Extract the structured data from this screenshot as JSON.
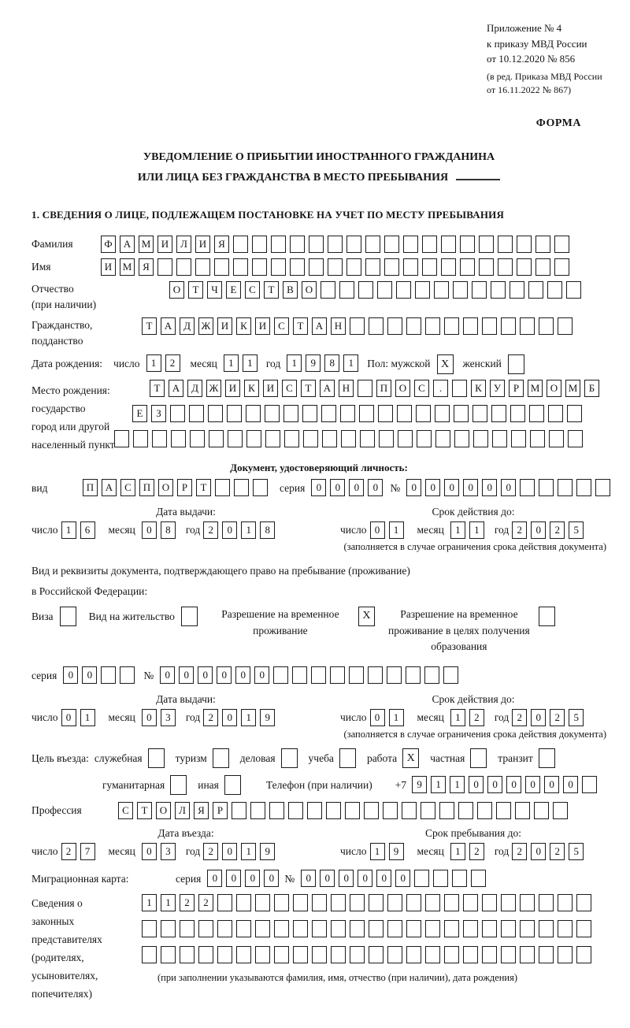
{
  "appendix": {
    "line1": "Приложение № 4",
    "line2": "к приказу МВД России",
    "line3": "от 10.12.2020 № 856",
    "line4": "(в ред. Приказа МВД России",
    "line5": "от 16.11.2022 № 867)"
  },
  "form_label": "ФОРМА",
  "title": {
    "line1": "УВЕДОМЛЕНИЕ О ПРИБЫТИИ ИНОСТРАННОГО ГРАЖДАНИНА",
    "line2": "ИЛИ ЛИЦА БЕЗ ГРАЖДАНСТВА В МЕСТО ПРЕБЫВАНИЯ"
  },
  "section_heading": "1. СВЕДЕНИЯ О ЛИЦЕ, ПОДЛЕЖАЩЕМ ПОСТАНОВКЕ НА УЧЕТ ПО МЕСТУ ПРЕБЫВАНИЯ",
  "date_part_labels": {
    "day": "число",
    "month": "месяц",
    "year": "год"
  },
  "surname": {
    "label": "Фамилия",
    "value": "ФАМИЛИЯ",
    "size": 25
  },
  "given_name": {
    "label": "Имя",
    "value": "ИМЯ",
    "size": 25
  },
  "patronymic": {
    "label1": "Отчество",
    "label2": "(при наличии)",
    "value": "ОТЧЕСТВО",
    "size": 22
  },
  "citizenship": {
    "label1": "Гражданство,",
    "label2": "подданство",
    "value": "ТАДЖИКИСТАН",
    "size": 23
  },
  "birth_date": {
    "label": "Дата рождения:",
    "day": {
      "value": "12",
      "size": 2
    },
    "month": {
      "value": "11",
      "size": 2
    },
    "year": {
      "value": "1981",
      "size": 4
    }
  },
  "gender": {
    "label": "Пол: мужской",
    "male_mark": "X",
    "female_label": "женский",
    "female_mark": ""
  },
  "birth_place": {
    "label1": "Место рождения:",
    "label2": "государство",
    "label3": "город или другой",
    "label4": "населенный пункт",
    "row1": {
      "value": "ТАДЖИКИСТАН ПОС. КУРМОМБ",
      "size": 24
    },
    "row2": {
      "value": "ЕЗ",
      "size": 24
    },
    "row3": {
      "value": "",
      "size": 25
    }
  },
  "identity_doc": {
    "heading": "Документ, удостоверяющий личность:",
    "kind_label": "вид",
    "kind": {
      "value": "ПАСПОРТ",
      "size": 10
    },
    "series_label": "серия",
    "series": {
      "value": "0000",
      "size": 4
    },
    "number_label": "№",
    "number": {
      "value": "000000",
      "size": 11
    },
    "issue_label": "Дата выдачи:",
    "issue": {
      "day": {
        "value": "16",
        "size": 2
      },
      "month": {
        "value": "08",
        "size": 2
      },
      "year": {
        "value": "2018",
        "size": 4
      }
    },
    "valid_label": "Срок действия до:",
    "valid": {
      "day": {
        "value": "01",
        "size": 2
      },
      "month": {
        "value": "11",
        "size": 2
      },
      "year": {
        "value": "2025",
        "size": 4
      }
    },
    "valid_note": "(заполняется в случае ограничения срока действия документа)"
  },
  "residence_doc": {
    "intro1": "Вид и реквизиты документа, подтверждающего право на пребывание (проживание)",
    "intro2": "в Российской Федерации:",
    "visa_label": "Виза",
    "visa_mark": "",
    "residence_permit_label": "Вид на жительство",
    "residence_permit_mark": "",
    "temp_residence_label": "Разрешение на временное проживание",
    "temp_residence_mark": "X",
    "temp_residence_edu_label": "Разрешение на временное проживание в целях получения образования",
    "temp_residence_edu_mark": "",
    "series_label": "серия",
    "series": {
      "value": "00",
      "size": 4
    },
    "number_label": "№",
    "number": {
      "value": "000000",
      "size": 16
    },
    "issue_label": "Дата выдачи:",
    "issue": {
      "day": {
        "value": "01",
        "size": 2
      },
      "month": {
        "value": "03",
        "size": 2
      },
      "year": {
        "value": "2019",
        "size": 4
      }
    },
    "valid_label": "Срок действия до:",
    "valid": {
      "day": {
        "value": "01",
        "size": 2
      },
      "month": {
        "value": "12",
        "size": 2
      },
      "year": {
        "value": "2025",
        "size": 4
      }
    },
    "valid_note": "(заполняется в случае ограничения срока действия документа)"
  },
  "purpose": {
    "label": "Цель въезда:",
    "items": [
      {
        "label": "служебная",
        "mark": ""
      },
      {
        "label": "туризм",
        "mark": ""
      },
      {
        "label": "деловая",
        "mark": ""
      },
      {
        "label": "учеба",
        "mark": ""
      },
      {
        "label": "работа",
        "mark": "X"
      },
      {
        "label": "частная",
        "mark": ""
      },
      {
        "label": "транзит",
        "mark": ""
      },
      {
        "label": "гуманитарная",
        "mark": ""
      },
      {
        "label": "иная",
        "mark": ""
      }
    ]
  },
  "phone": {
    "label": "Телефон (при наличии)",
    "prefix": "+7",
    "value": "911000000",
    "size": 10
  },
  "profession": {
    "label": "Профессия",
    "value": "СТОЛЯР",
    "size": 24
  },
  "entry": {
    "date_label": "Дата въезда:",
    "date": {
      "day": {
        "value": "27",
        "size": 2
      },
      "month": {
        "value": "03",
        "size": 2
      },
      "year": {
        "value": "2019",
        "size": 4
      }
    },
    "stay_label": "Срок пребывания до:",
    "stay": {
      "day": {
        "value": "19",
        "size": 2
      },
      "month": {
        "value": "12",
        "size": 2
      },
      "year": {
        "value": "2025",
        "size": 4
      }
    }
  },
  "migration_card": {
    "label": "Миграционная карта:",
    "series_label": "серия",
    "series": {
      "value": "0000",
      "size": 4
    },
    "number_label": "№",
    "number": {
      "value": "000000",
      "size": 10
    }
  },
  "legal_reps": {
    "label1": "Сведения о",
    "label2": "законных",
    "label3": "представителях",
    "label4": "(родителях,",
    "label5": "усыновителях,",
    "label6": "попечителях)",
    "row1": {
      "value": "1122",
      "size": 24
    },
    "row2": {
      "value": "",
      "size": 24
    },
    "row3": {
      "value": "",
      "size": 24
    },
    "caption": "(при заполнении указываются фамилия, имя, отчество (при наличии), дата рождения)"
  }
}
